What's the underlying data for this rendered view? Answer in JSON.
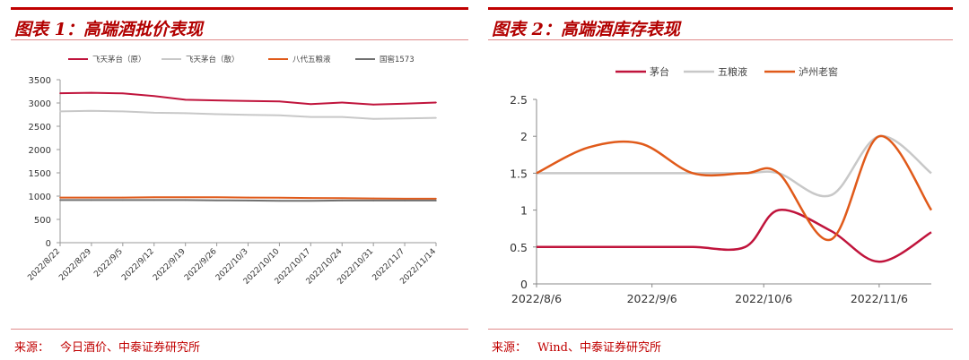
{
  "charts": [
    {
      "heading": "图表 1：高端酒批价表现",
      "source_label": "来源：",
      "source_text": "今日酒价、中泰证券研究所",
      "chart_data": {
        "type": "line",
        "title": "",
        "xlabel": "",
        "ylabel": "",
        "ylim": [
          0,
          3500
        ],
        "yticks": [
          0,
          500,
          1000,
          1500,
          2000,
          2500,
          3000,
          3500
        ],
        "grid": false,
        "legend": "top",
        "categories": [
          "2022/8/22",
          "2022/8/29",
          "2022/9/5",
          "2022/9/12",
          "2022/9/19",
          "2022/9/26",
          "2022/10/3",
          "2022/10/10",
          "2022/10/17",
          "2022/10/24",
          "2022/10/31",
          "2022/11/7",
          "2022/11/14"
        ],
        "series": [
          {
            "name": "飞天茅台（原）",
            "color": "#c0143c",
            "values": [
              3210,
              3220,
              3205,
              3150,
              3070,
              3055,
              3045,
              3035,
              2975,
              3010,
              2965,
              2985,
              3010
            ]
          },
          {
            "name": "飞天茅台（散）",
            "color": "#c8c8c8",
            "values": [
              2820,
              2830,
              2820,
              2790,
              2780,
              2760,
              2745,
              2735,
              2700,
              2700,
              2660,
              2670,
              2680
            ]
          },
          {
            "name": "八代五粮液",
            "color": "#e05a1a",
            "values": [
              970,
              970,
              970,
              975,
              975,
              975,
              970,
              965,
              960,
              955,
              950,
              945,
              945
            ]
          },
          {
            "name": "国窖1573",
            "color": "#707070",
            "values": [
              915,
              915,
              915,
              915,
              915,
              910,
              905,
              900,
              900,
              905,
              905,
              905,
              905
            ]
          }
        ]
      }
    },
    {
      "heading": "图表 2：高端酒库存表现",
      "source_label": "来源：",
      "source_text": "Wind、中泰证券研究所",
      "chart_data": {
        "type": "line",
        "title": "",
        "xlabel": "",
        "ylabel": "",
        "ylim": [
          0,
          2.5
        ],
        "yticks": [
          "0",
          "0.5",
          "1",
          "1.5",
          "2",
          "2.5"
        ],
        "grid": false,
        "legend": "top",
        "x_dates": [
          "2022/8/6",
          "2022/8/20",
          "2022/9/3",
          "2022/9/17",
          "2022/10/1",
          "2022/10/10",
          "2022/10/24",
          "2022/11/6",
          "2022/11/20"
        ],
        "x_ticks": [
          "2022/8/6",
          "2022/9/6",
          "2022/10/6",
          "2022/11/6"
        ],
        "series": [
          {
            "name": "茅台",
            "color": "#c0143c",
            "values": [
              0.5,
              0.5,
              0.5,
              0.5,
              0.5,
              1.0,
              0.72,
              0.3,
              0.7
            ]
          },
          {
            "name": "五粮液",
            "color": "#c8c8c8",
            "values": [
              1.5,
              1.5,
              1.5,
              1.5,
              1.5,
              1.5,
              1.2,
              2.0,
              1.5
            ]
          },
          {
            "name": "泸州老窖",
            "color": "#e05a1a",
            "values": [
              1.5,
              1.85,
              1.9,
              1.5,
              1.5,
              1.5,
              0.6,
              2.0,
              1.0
            ]
          }
        ]
      }
    }
  ]
}
